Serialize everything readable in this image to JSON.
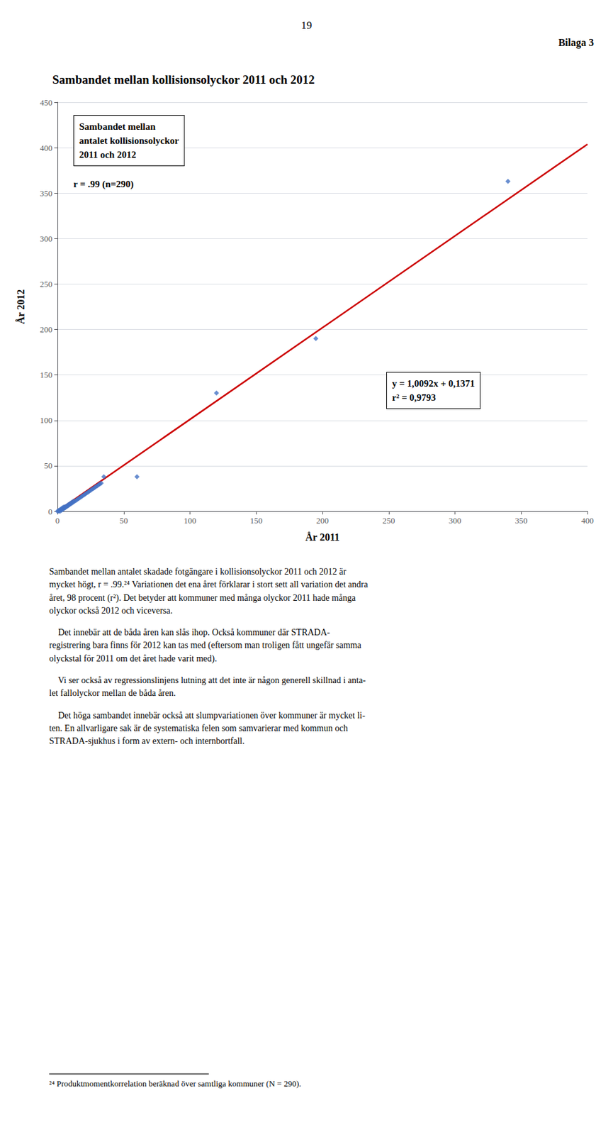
{
  "page_number": "19",
  "header": "Bilaga 3",
  "body": [
    [
      "Sambandet mellan antalet skadade fotgängare i kollisionsolyckor 2011 och 2012 är",
      "mycket högt, r = .99.²⁴ Variationen det ena året förklarar i stort sett all variation det andra",
      "året, 98 procent (r²). Det betyder att kommuner med många olyckor 2011 hade många",
      "olyckor också 2012 och viceversa."
    ],
    [
      "    Det innebär att de båda åren kan slås ihop. Också kommuner där STRADA-",
      "registrering bara finns för 2012 kan tas med (eftersom man troligen fått ungefär samma",
      "olyckstal för 2011 om det året hade varit med)."
    ],
    [
      "    Vi ser också av regressionslinjens lutning att det inte är någon generell skillnad i anta-",
      "let fallolyckor mellan de båda åren."
    ],
    [
      "    Det höga sambandet innebär också att slumpvariationen över kommuner är mycket li-",
      "ten. En allvarligare sak är de systematiska felen som samvarierar med kommun och",
      "STRADA-sjukhus i form av extern- och internbortfall."
    ]
  ],
  "footnote": "²⁴ Produktmomentkorrelation beräknad över samtliga kommuner (N = 290).",
  "chart_data": {
    "type": "scatter",
    "title": "Sambandet mellan kollisionsolyckor 2011 och 2012",
    "x_label": "År 2011",
    "y_label": "År 2012",
    "xlim": [
      0,
      400
    ],
    "ylim": [
      0,
      450
    ],
    "xticks": [
      0,
      50,
      100,
      150,
      200,
      250,
      300,
      350,
      400
    ],
    "yticks": [
      0,
      50,
      100,
      150,
      200,
      250,
      300,
      350,
      400,
      450
    ],
    "grid": "y",
    "annotations": [
      "Sambandet mellan\nantalet kollisionsolyckor\n2011 och 2012",
      "r = .99 (n=290)",
      "y = 1,0092x + 0,1371\nr² = 0,9793"
    ],
    "series": [
      {
        "type": "scatter",
        "color": "#4472C4",
        "marker": "diamond",
        "values": [
          [
            0,
            0
          ],
          [
            1,
            0
          ],
          [
            1,
            1
          ],
          [
            2,
            0
          ],
          [
            2,
            2
          ],
          [
            3,
            1
          ],
          [
            3,
            2
          ],
          [
            3,
            3
          ],
          [
            4,
            2
          ],
          [
            4,
            3
          ],
          [
            4,
            4
          ],
          [
            5,
            3
          ],
          [
            5,
            4
          ],
          [
            5,
            5
          ],
          [
            6,
            4
          ],
          [
            6,
            5
          ],
          [
            7,
            5
          ],
          [
            7,
            6
          ],
          [
            8,
            6
          ],
          [
            8,
            7
          ],
          [
            9,
            7
          ],
          [
            9,
            8
          ],
          [
            10,
            8
          ],
          [
            10,
            9
          ],
          [
            11,
            9
          ],
          [
            11,
            10
          ],
          [
            12,
            10
          ],
          [
            12,
            11
          ],
          [
            13,
            11
          ],
          [
            14,
            12
          ],
          [
            15,
            13
          ],
          [
            16,
            14
          ],
          [
            17,
            15
          ],
          [
            18,
            16
          ],
          [
            19,
            17
          ],
          [
            20,
            18
          ],
          [
            21,
            19
          ],
          [
            22,
            20
          ],
          [
            23,
            21
          ],
          [
            24,
            22
          ],
          [
            25,
            23
          ],
          [
            26,
            24
          ],
          [
            27,
            25
          ],
          [
            28,
            26
          ],
          [
            29,
            27
          ],
          [
            30,
            28
          ],
          [
            31,
            29
          ],
          [
            32,
            30
          ],
          [
            33,
            31
          ],
          [
            35,
            38
          ],
          [
            60,
            38
          ],
          [
            120,
            130
          ],
          [
            195,
            190
          ],
          [
            340,
            363
          ]
        ]
      },
      {
        "type": "line",
        "color": "#CC0000",
        "values": [
          [
            0,
            0.1371
          ],
          [
            400,
            403.8171
          ]
        ]
      }
    ]
  }
}
